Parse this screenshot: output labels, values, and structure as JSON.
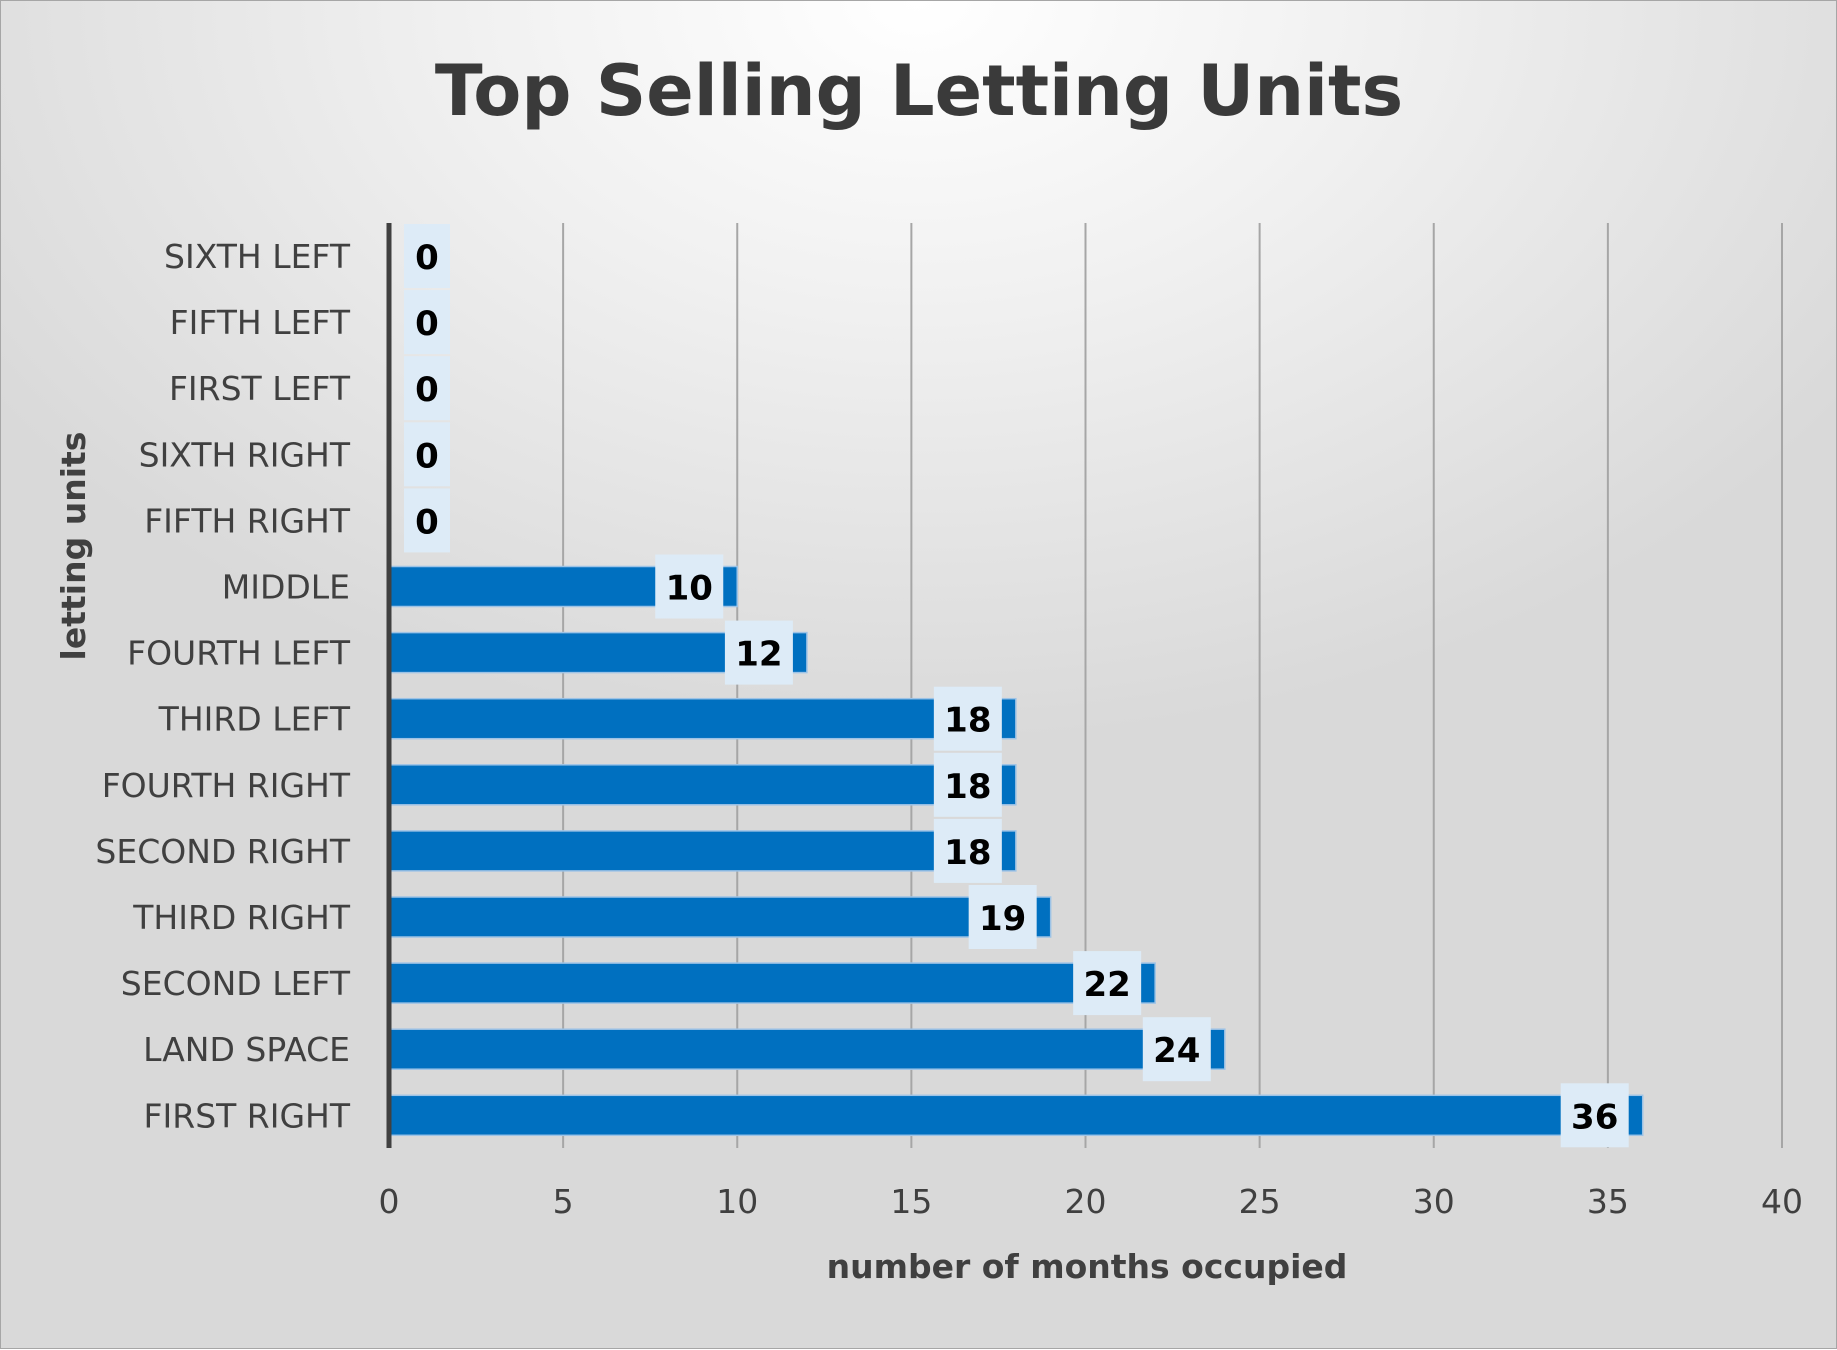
{
  "chart_data": {
    "type": "bar",
    "orientation": "horizontal",
    "title": "Top Selling Letting Units",
    "xlabel": "number of months occupied",
    "ylabel": "letting units",
    "categories": [
      "SIXTH LEFT",
      "FIFTH LEFT",
      "FIRST LEFT",
      "SIXTH RIGHT",
      "FIFTH RIGHT",
      "MIDDLE",
      "FOURTH LEFT",
      "THIRD LEFT",
      "FOURTH RIGHT",
      "SECOND RIGHT",
      "THIRD RIGHT",
      "SECOND LEFT",
      "LAND SPACE",
      "FIRST RIGHT"
    ],
    "values": [
      0,
      0,
      0,
      0,
      0,
      10,
      12,
      18,
      18,
      18,
      19,
      22,
      24,
      36
    ],
    "xlim": [
      0,
      40
    ],
    "xticks": [
      0,
      5,
      10,
      15,
      20,
      25,
      30,
      35,
      40
    ],
    "grid": "vertical",
    "legend": "none",
    "data_labels": true,
    "colors": {
      "bar": "#0070c0",
      "bar_edge": "#9dc3e6",
      "label_box": "#ddebf7",
      "gridline": "#a6a6a6",
      "axis": "#404040"
    }
  }
}
